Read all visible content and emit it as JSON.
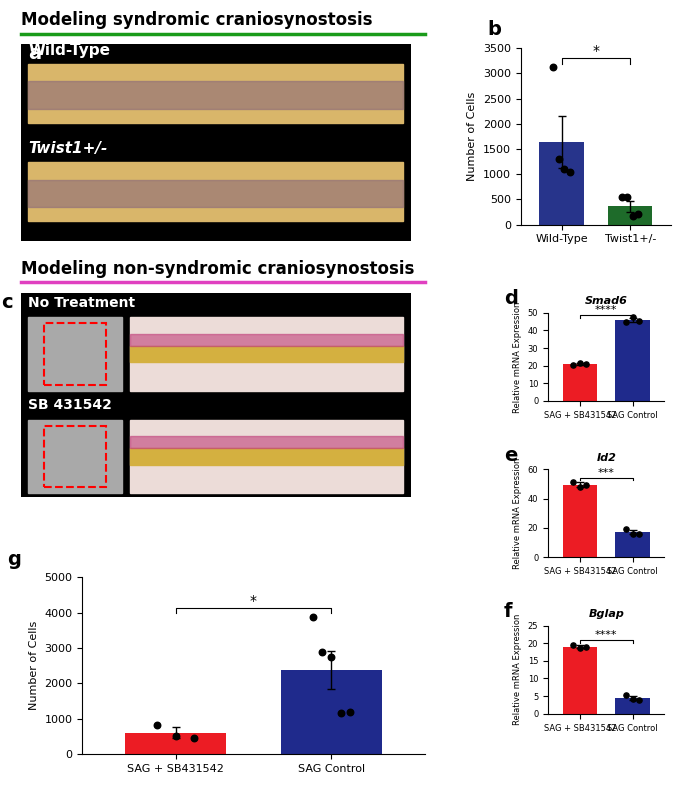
{
  "headings": [
    {
      "text": "Modeling syndromic craniosynostosis",
      "color": "#1a9b1a"
    },
    {
      "text": "Modeling non-syndromic craniosynostosis",
      "color": "#e040c0"
    }
  ],
  "images": [
    {
      "panel": "a",
      "labels": [
        "Wild-Type",
        "Twist1+/-"
      ]
    },
    {
      "panel": "c",
      "labels": [
        "No Treatment",
        "SB 431542"
      ]
    }
  ],
  "chart_data": [
    {
      "panel": "b",
      "type": "bar",
      "title": null,
      "y_label": "Number of Cells",
      "categories": [
        "Wild-Type",
        "Twist1+/-"
      ],
      "values": [
        1640,
        360
      ],
      "errors": [
        510,
        110
      ],
      "points": [
        [
          3120,
          1300,
          1100,
          1050
        ],
        [
          540,
          540,
          160,
          200
        ]
      ],
      "colors": [
        "#27348b",
        "#1e6b2a"
      ],
      "ylim": [
        0,
        3500
      ],
      "yticks": [
        0,
        500,
        1000,
        1500,
        2000,
        2500,
        3000,
        3500
      ],
      "annotation": "*"
    },
    {
      "panel": "d",
      "type": "bar",
      "title": "Smad6",
      "y_label": "Relative mRNA Expression",
      "categories": [
        "SAG + SB431542",
        "SAG Control"
      ],
      "values": [
        21,
        46
      ],
      "errors": [
        0.8,
        1.2
      ],
      "points": [
        [
          20.3,
          21.6,
          21.0
        ],
        [
          45.0,
          47.8,
          45.2
        ]
      ],
      "colors": [
        "#ec1c24",
        "#1f2a8c"
      ],
      "ylim": [
        0,
        50
      ],
      "yticks": [
        0,
        10,
        20,
        30,
        40,
        50
      ],
      "annotation": "****"
    },
    {
      "panel": "e",
      "type": "bar",
      "title": "Id2",
      "y_label": "Relative mRNA Expression",
      "categories": [
        "SAG + SB431542",
        "SAG Control"
      ],
      "values": [
        49.5,
        17
      ],
      "errors": [
        1.5,
        1.3
      ],
      "points": [
        [
          51.3,
          48.0,
          49.3
        ],
        [
          19.0,
          16.0,
          16.0
        ]
      ],
      "colors": [
        "#ec1c24",
        "#1f2a8c"
      ],
      "ylim": [
        0,
        60
      ],
      "yticks": [
        0,
        20,
        40,
        60
      ],
      "annotation": "***"
    },
    {
      "panel": "f",
      "type": "bar",
      "title": "Bglap",
      "y_label": "Relative mRNA Expression",
      "categories": [
        "SAG + SB431542",
        "SAG Control"
      ],
      "values": [
        19,
        4.5
      ],
      "errors": [
        0.4,
        0.5
      ],
      "points": [
        [
          19.6,
          18.6,
          18.9
        ],
        [
          5.4,
          4.2,
          4.0
        ]
      ],
      "colors": [
        "#ec1c24",
        "#1f2a8c"
      ],
      "ylim": [
        0,
        25
      ],
      "yticks": [
        0,
        5,
        10,
        15,
        20,
        25
      ],
      "annotation": "****"
    },
    {
      "panel": "g",
      "type": "bar",
      "title": null,
      "y_label": "Number of Cells",
      "categories": [
        "SAG + SB431542",
        "SAG Control"
      ],
      "values": [
        600,
        2380
      ],
      "errors": [
        150,
        530
      ],
      "points": [
        [
          830,
          520,
          450
        ],
        [
          3880,
          2900,
          2750,
          1170,
          1200
        ]
      ],
      "colors": [
        "#ec1c24",
        "#1f2a8c"
      ],
      "ylim": [
        0,
        5000
      ],
      "yticks": [
        0,
        1000,
        2000,
        3000,
        4000,
        5000
      ],
      "annotation": "*"
    }
  ]
}
